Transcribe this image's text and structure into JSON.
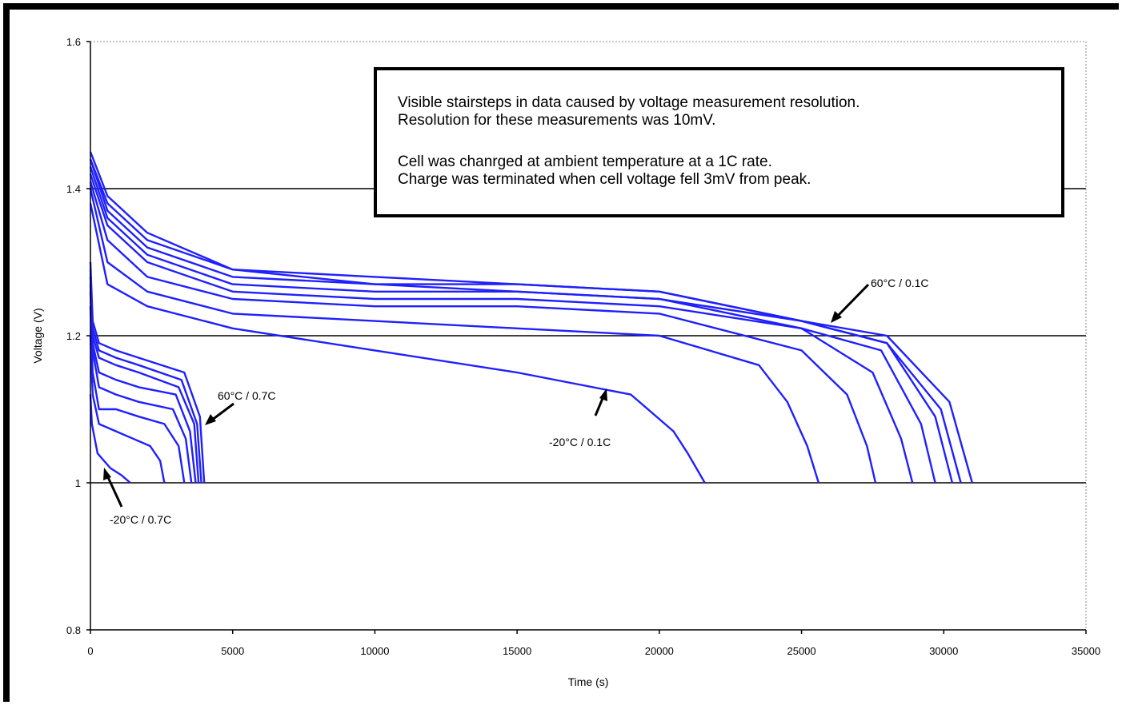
{
  "chart_data": {
    "type": "line",
    "xlabel": "Time (s)",
    "ylabel": "Voltage (V)",
    "xlim": [
      0,
      35000
    ],
    "ylim": [
      0.8,
      1.6
    ],
    "x_ticks": [
      "0",
      "5000",
      "10000",
      "15000",
      "20000",
      "25000",
      "30000",
      "35000"
    ],
    "y_ticks": [
      "0.8",
      "1",
      "1.2",
      "1.4",
      "1.6"
    ],
    "grid": "horizontal",
    "line_color": "#1f1fff",
    "note": {
      "line1": "Visible stairsteps in data caused by voltage measurement resolution.",
      "line2": "Resolution for these measurements was 10mV.",
      "line3": "Cell was chanrged at ambient temperature at a 1C rate.",
      "line4": "Charge was terminated when cell voltage fell 3mV from peak."
    },
    "annotations": [
      {
        "text": "60°C / 0.1C"
      },
      {
        "text": "60°C / 0.7C"
      },
      {
        "text": "-20°C / 0.1C"
      },
      {
        "text": "-20°C / 0.7C"
      }
    ],
    "series": [
      {
        "x": [
          0,
          600,
          2000,
          5000,
          10000,
          15000,
          19000,
          20500,
          21000,
          21300,
          21600
        ],
        "y": [
          1.38,
          1.27,
          1.24,
          1.21,
          1.18,
          1.15,
          1.12,
          1.07,
          1.04,
          1.02,
          1.0
        ]
      },
      {
        "x": [
          0,
          600,
          2000,
          5000,
          10000,
          15000,
          20000,
          23500,
          24500,
          25200,
          25600
        ],
        "y": [
          1.4,
          1.3,
          1.26,
          1.23,
          1.22,
          1.21,
          1.2,
          1.16,
          1.11,
          1.05,
          1.0
        ]
      },
      {
        "x": [
          0,
          600,
          2000,
          5000,
          10000,
          15000,
          20000,
          25000,
          26600,
          27300,
          27600
        ],
        "y": [
          1.41,
          1.33,
          1.28,
          1.25,
          1.24,
          1.24,
          1.23,
          1.18,
          1.12,
          1.05,
          1.0
        ]
      },
      {
        "x": [
          0,
          600,
          2000,
          5000,
          10000,
          15000,
          20000,
          25000,
          27500,
          28500,
          28900
        ],
        "y": [
          1.42,
          1.35,
          1.3,
          1.26,
          1.25,
          1.25,
          1.24,
          1.21,
          1.15,
          1.06,
          1.0
        ]
      },
      {
        "x": [
          0,
          600,
          2000,
          5000,
          10000,
          15000,
          20000,
          25000,
          27800,
          29200,
          29700
        ],
        "y": [
          1.43,
          1.36,
          1.31,
          1.27,
          1.26,
          1.26,
          1.25,
          1.21,
          1.18,
          1.08,
          1.0
        ]
      },
      {
        "x": [
          0,
          600,
          2000,
          5000,
          10000,
          15000,
          20000,
          25000,
          28000,
          29700,
          30300
        ],
        "y": [
          1.44,
          1.37,
          1.32,
          1.28,
          1.27,
          1.26,
          1.25,
          1.22,
          1.19,
          1.09,
          1.0
        ]
      },
      {
        "x": [
          0,
          600,
          2000,
          5000,
          10000,
          15000,
          20000,
          25000,
          28000,
          29900,
          30600
        ],
        "y": [
          1.44,
          1.38,
          1.33,
          1.29,
          1.27,
          1.27,
          1.26,
          1.22,
          1.19,
          1.1,
          1.0
        ]
      },
      {
        "x": [
          0,
          600,
          2000,
          5000,
          10000,
          15000,
          20000,
          25000,
          28000,
          30200,
          31000
        ],
        "y": [
          1.45,
          1.39,
          1.34,
          1.29,
          1.28,
          1.27,
          1.26,
          1.22,
          1.2,
          1.11,
          1.0
        ]
      },
      {
        "x": [
          0,
          50,
          250,
          700,
          1100,
          1400
        ],
        "y": [
          1.12,
          1.08,
          1.04,
          1.02,
          1.01,
          1.0
        ]
      },
      {
        "x": [
          0,
          80,
          300,
          900,
          1500,
          2100,
          2450,
          2600
        ],
        "y": [
          1.2,
          1.12,
          1.08,
          1.07,
          1.06,
          1.05,
          1.03,
          1.0
        ]
      },
      {
        "x": [
          0,
          80,
          300,
          900,
          1700,
          2600,
          3100,
          3300
        ],
        "y": [
          1.24,
          1.15,
          1.1,
          1.1,
          1.09,
          1.08,
          1.05,
          1.0
        ]
      },
      {
        "x": [
          0,
          80,
          300,
          900,
          1700,
          2900,
          3350,
          3550
        ],
        "y": [
          1.26,
          1.18,
          1.13,
          1.12,
          1.11,
          1.1,
          1.06,
          1.0
        ]
      },
      {
        "x": [
          0,
          80,
          300,
          900,
          1700,
          3000,
          3500,
          3700
        ],
        "y": [
          1.27,
          1.19,
          1.15,
          1.14,
          1.13,
          1.12,
          1.07,
          1.0
        ]
      },
      {
        "x": [
          0,
          80,
          300,
          900,
          1700,
          3100,
          3650,
          3800
        ],
        "y": [
          1.28,
          1.2,
          1.17,
          1.16,
          1.15,
          1.13,
          1.08,
          1.0
        ]
      },
      {
        "x": [
          0,
          80,
          300,
          900,
          1700,
          3200,
          3750,
          3900
        ],
        "y": [
          1.29,
          1.21,
          1.18,
          1.17,
          1.16,
          1.14,
          1.08,
          1.0
        ]
      },
      {
        "x": [
          0,
          80,
          300,
          900,
          1700,
          3300,
          3850,
          4000
        ],
        "y": [
          1.3,
          1.22,
          1.19,
          1.18,
          1.17,
          1.15,
          1.09,
          1.0
        ]
      }
    ]
  }
}
